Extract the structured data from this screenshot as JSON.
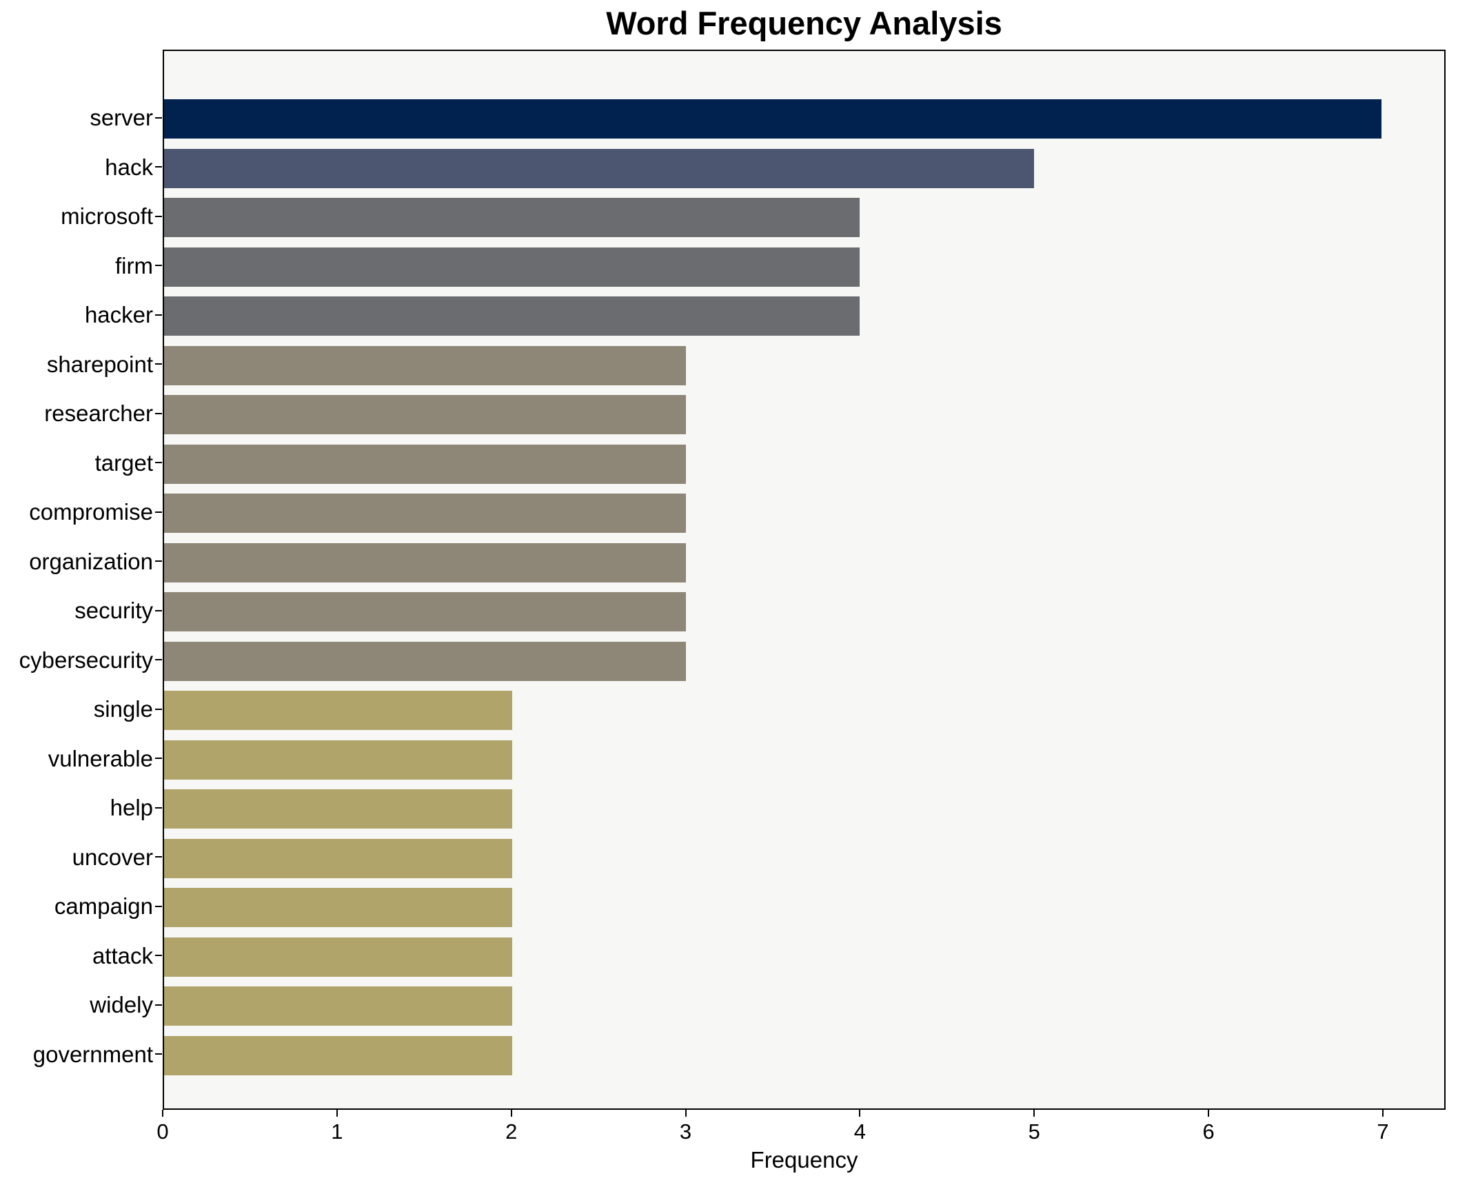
{
  "chart_data": {
    "type": "bar",
    "orientation": "horizontal",
    "title": "Word Frequency Analysis",
    "xlabel": "Frequency",
    "ylabel": "",
    "categories": [
      "server",
      "hack",
      "microsoft",
      "firm",
      "hacker",
      "sharepoint",
      "researcher",
      "target",
      "compromise",
      "organization",
      "security",
      "cybersecurity",
      "single",
      "vulnerable",
      "help",
      "uncover",
      "campaign",
      "attack",
      "widely",
      "government"
    ],
    "values": [
      7,
      5,
      4,
      4,
      4,
      3,
      3,
      3,
      3,
      3,
      3,
      3,
      2,
      2,
      2,
      2,
      2,
      2,
      2,
      2
    ],
    "bar_colors": [
      "#01224e",
      "#4d5670",
      "#6a6c6f",
      "#6a6c6f",
      "#6a6c6f",
      "#8e8777",
      "#8e8777",
      "#8e8777",
      "#8e8777",
      "#8e8777",
      "#8e8777",
      "#8e8777",
      "#b0a46a",
      "#b0a46a",
      "#b0a46a",
      "#b0a46a",
      "#b0a46a",
      "#b0a46a",
      "#b0a46a",
      "#b0a46a"
    ],
    "xlim": [
      0,
      7.36
    ],
    "xticks": [
      0,
      1,
      2,
      3,
      4,
      5,
      6,
      7
    ],
    "grid": false,
    "legend_position": "none",
    "plot_background": "#f7f7f5",
    "figure_background": "#ffffff",
    "spine_color": "#000000"
  }
}
